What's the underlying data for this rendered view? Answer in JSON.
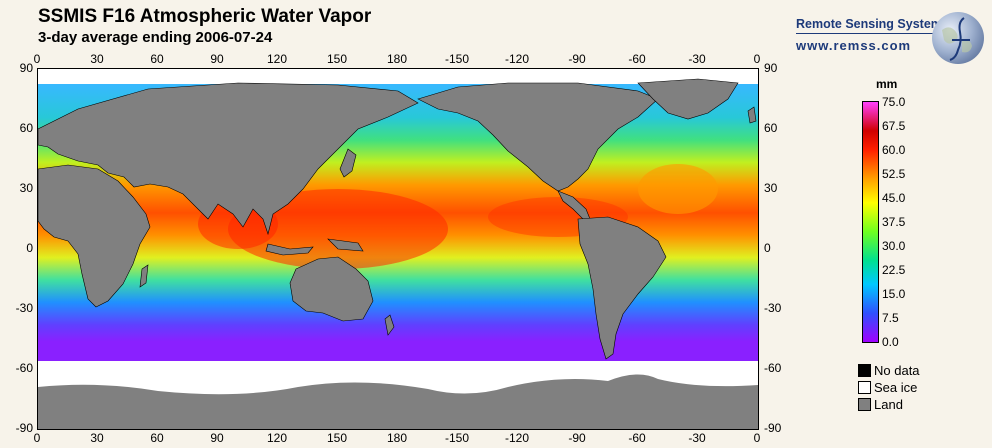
{
  "header": {
    "title": "SSMIS F16 Atmospheric Water Vapor",
    "subtitle": "3-day average ending 2006-07-24"
  },
  "branding": {
    "name": "Remote Sensing Systems",
    "url": "www.remss.com",
    "logo_icon": "globe-logo-icon"
  },
  "map": {
    "lon_labels": [
      "0",
      "30",
      "60",
      "90",
      "120",
      "150",
      "180",
      "-150",
      "-120",
      "-90",
      "-60",
      "-30",
      "0"
    ],
    "lon_values": [
      0,
      30,
      60,
      90,
      120,
      150,
      180,
      210,
      240,
      270,
      300,
      330,
      360
    ],
    "lat_labels": [
      "90",
      "60",
      "30",
      "0",
      "-30",
      "-60",
      "-90"
    ],
    "lat_values": [
      90,
      60,
      30,
      0,
      -30,
      -60,
      -90
    ],
    "land_color": "#808080",
    "sea_ice_color": "#ffffff",
    "no_data_color": "#000000"
  },
  "colorbar": {
    "unit": "mm",
    "min": 0,
    "max": 75,
    "ticks": [
      "75.0",
      "67.5",
      "60.0",
      "52.5",
      "45.0",
      "37.5",
      "30.0",
      "22.5",
      "15.0",
      "7.5",
      "0.0"
    ]
  },
  "legend": [
    {
      "label": "No data",
      "color": "#000000"
    },
    {
      "label": "Sea ice",
      "color": "#ffffff"
    },
    {
      "label": "Land",
      "color": "#808080"
    }
  ]
}
